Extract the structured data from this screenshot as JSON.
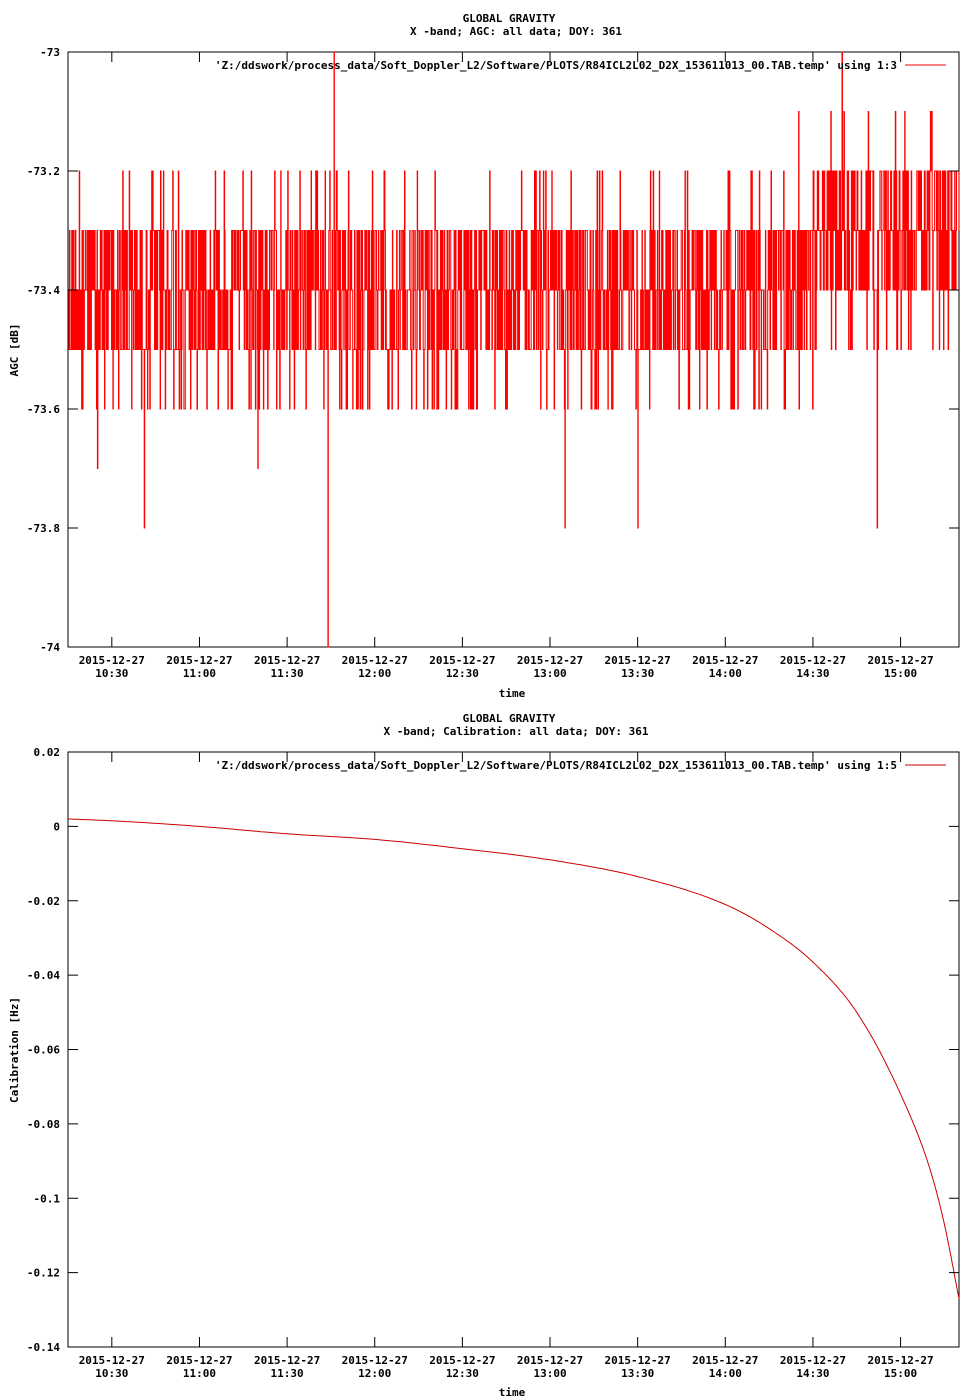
{
  "chart_data": [
    {
      "type": "line",
      "title": "GLOBAL GRAVITY",
      "subtitle": "X -band; AGC: all data; DOY: 361",
      "xlabel": "time",
      "ylabel": "AGC [dB]",
      "ylim": [
        -74,
        -73
      ],
      "yticks": [
        "-73",
        "-73.2",
        "-73.4",
        "-73.6",
        "-73.8",
        "-74"
      ],
      "ytick_values": [
        -73,
        -73.2,
        -73.4,
        -73.6,
        -73.8,
        -74
      ],
      "xlim": [
        "10:15",
        "15:20"
      ],
      "xtick_values": [
        "10:30",
        "11:00",
        "11:30",
        "12:00",
        "12:30",
        "13:00",
        "13:30",
        "14:00",
        "14:30",
        "15:00"
      ],
      "xtick_dates": [
        "2015-12-27",
        "2015-12-27",
        "2015-12-27",
        "2015-12-27",
        "2015-12-27",
        "2015-12-27",
        "2015-12-27",
        "2015-12-27",
        "2015-12-27",
        "2015-12-27"
      ],
      "xtick_times": [
        "10:30",
        "11:00",
        "11:30",
        "12:00",
        "12:30",
        "13:00",
        "13:30",
        "14:00",
        "14:30",
        "15:00"
      ],
      "grid": false,
      "legend_position": "top-right",
      "series": [
        {
          "name": "'Z:/ddswork/process_data/Soft_Doppler_L2/Software/PLOTS/R84ICL2L02_D2X_153611013_00.TAB.temp' using 1:3",
          "color": "#ff0000",
          "baseline_by_segment": [
            {
              "from": "10:15",
              "to": "14:30",
              "levels": [
                -73.3,
                -73.4,
                -73.5
              ]
            },
            {
              "from": "14:30",
              "to": "15:20",
              "levels": [
                -73.2,
                -73.3,
                -73.4
              ]
            }
          ],
          "notable_points": [
            {
              "x": "10:25",
              "y": -73.7
            },
            {
              "x": "10:41",
              "y": -73.8
            },
            {
              "x": "11:20",
              "y": -73.7
            },
            {
              "x": "11:44",
              "y": -74.0
            },
            {
              "x": "11:46",
              "y": -73.0
            },
            {
              "x": "13:05",
              "y": -73.8
            },
            {
              "x": "13:30",
              "y": -73.8
            },
            {
              "x": "14:25",
              "y": -73.1
            },
            {
              "x": "14:52",
              "y": -73.8
            },
            {
              "x": "14:40",
              "y": -73.0
            }
          ]
        }
      ]
    },
    {
      "type": "line",
      "title": "GLOBAL GRAVITY",
      "subtitle": "X -band; Calibration: all data; DOY: 361",
      "xlabel": "time",
      "ylabel": "Calibration [Hz]",
      "ylim": [
        -0.14,
        0.02
      ],
      "yticks": [
        "0.02",
        "0",
        "-0.02",
        "-0.04",
        "-0.06",
        "-0.08",
        "-0.1",
        "-0.12",
        "-0.14"
      ],
      "ytick_values": [
        0.02,
        0,
        -0.02,
        -0.04,
        -0.06,
        -0.08,
        -0.1,
        -0.12,
        -0.14
      ],
      "xlim": [
        "10:15",
        "15:20"
      ],
      "xtick_values": [
        "10:30",
        "11:00",
        "11:30",
        "12:00",
        "12:30",
        "13:00",
        "13:30",
        "14:00",
        "14:30",
        "15:00"
      ],
      "xtick_dates": [
        "2015-12-27",
        "2015-12-27",
        "2015-12-27",
        "2015-12-27",
        "2015-12-27",
        "2015-12-27",
        "2015-12-27",
        "2015-12-27",
        "2015-12-27",
        "2015-12-27"
      ],
      "xtick_times": [
        "10:30",
        "11:00",
        "11:30",
        "12:00",
        "12:30",
        "13:00",
        "13:30",
        "14:00",
        "14:30",
        "15:00"
      ],
      "grid": false,
      "legend_position": "top-right",
      "series": [
        {
          "name": "'Z:/ddswork/process_data/Soft_Doppler_L2/Software/PLOTS/R84ICL2L02_D2X_153611013_00.TAB.temp' using 1:5",
          "color": "#cc0000",
          "x": [
            "10:15",
            "10:30",
            "11:00",
            "11:30",
            "12:00",
            "12:30",
            "13:00",
            "13:30",
            "14:00",
            "14:15",
            "14:30",
            "14:45",
            "15:00",
            "15:10",
            "15:15",
            "15:20"
          ],
          "y": [
            0.002,
            0.0015,
            0.0,
            -0.002,
            -0.0035,
            -0.006,
            -0.009,
            -0.0135,
            -0.021,
            -0.0275,
            -0.0365,
            -0.05,
            -0.072,
            -0.092,
            -0.107,
            -0.127
          ]
        }
      ]
    }
  ]
}
